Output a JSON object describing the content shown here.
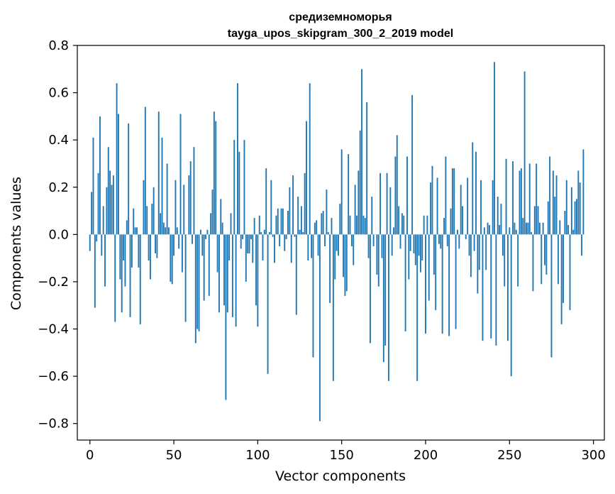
{
  "chart_data": {
    "type": "bar",
    "title_line1": "средиземноморья",
    "title_line2": "tayga_upos_skipgram_300_2_2019 model",
    "xlabel": "Vector components",
    "ylabel": "Components values",
    "xlim": [
      -7.5,
      306.5
    ],
    "ylim": [
      -0.87,
      0.8
    ],
    "xticks": [
      0,
      50,
      100,
      150,
      200,
      250,
      300
    ],
    "xtick_labels": [
      "0",
      "50",
      "100",
      "150",
      "200",
      "250",
      "300"
    ],
    "yticks": [
      -0.8,
      -0.6,
      -0.4,
      -0.2,
      0.0,
      0.2,
      0.4,
      0.6,
      0.8
    ],
    "ytick_labels": [
      "−0.8",
      "−0.6",
      "−0.4",
      "−0.2",
      "0.0",
      "0.2",
      "0.4",
      "0.6",
      "0.8"
    ],
    "bar_color": "#1f77b4",
    "values": [
      -0.07,
      0.18,
      0.41,
      -0.31,
      -0.03,
      0.26,
      0.5,
      -0.09,
      0.12,
      -0.22,
      0.2,
      0.37,
      0.27,
      0.21,
      0.25,
      -0.37,
      0.64,
      0.51,
      -0.19,
      -0.33,
      -0.11,
      -0.22,
      0.06,
      0.47,
      -0.35,
      -0.14,
      0.11,
      0.03,
      0.03,
      -0.14,
      -0.38,
      0.0,
      0.23,
      0.54,
      0.12,
      -0.11,
      -0.19,
      0.13,
      0.2,
      -0.08,
      -0.1,
      0.52,
      0.09,
      0.41,
      0.05,
      0.03,
      0.3,
      0.03,
      -0.2,
      -0.21,
      -0.09,
      0.23,
      0.03,
      -0.06,
      0.51,
      -0.16,
      0.21,
      -0.37,
      0.0,
      0.25,
      0.31,
      -0.04,
      0.37,
      -0.46,
      -0.4,
      -0.41,
      0.02,
      -0.09,
      -0.28,
      -0.02,
      0.02,
      -0.26,
      0.09,
      0.19,
      0.52,
      0.48,
      -0.16,
      -0.33,
      0.15,
      0.05,
      -0.3,
      -0.7,
      -0.33,
      -0.11,
      0.09,
      -0.35,
      0.4,
      -0.39,
      0.64,
      0.35,
      -0.06,
      -0.02,
      0.4,
      -0.2,
      -0.08,
      -0.08,
      -0.02,
      -0.12,
      0.07,
      -0.3,
      -0.39,
      0.08,
      0.01,
      -0.11,
      0.02,
      0.28,
      -0.59,
      0.01,
      0.23,
      -0.01,
      -0.12,
      0.08,
      0.11,
      -0.05,
      0.11,
      0.11,
      -0.07,
      -0.02,
      0.1,
      0.2,
      -0.12,
      0.25,
      -0.01,
      -0.34,
      0.16,
      0.02,
      0.12,
      0.01,
      0.26,
      0.48,
      -0.11,
      0.64,
      -0.1,
      -0.52,
      0.05,
      0.06,
      -0.09,
      -0.79,
      0.09,
      0.1,
      -0.05,
      0.19,
      0.01,
      -0.29,
      0.07,
      -0.62,
      -0.19,
      -0.07,
      -0.09,
      0.13,
      0.36,
      -0.18,
      -0.26,
      -0.24,
      0.34,
      0.08,
      -0.05,
      -0.13,
      0.21,
      0.08,
      0.27,
      0.44,
      0.7,
      0.08,
      0.07,
      0.56,
      -0.1,
      -0.46,
      0.16,
      -0.05,
      0.0,
      -0.17,
      -0.22,
      0.26,
      -0.1,
      -0.54,
      -0.47,
      0.26,
      -0.62,
      0.2,
      -0.09,
      0.03,
      0.33,
      0.42,
      0.12,
      -0.06,
      0.09,
      0.08,
      -0.41,
      0.33,
      -0.19,
      -0.07,
      0.59,
      -0.08,
      -0.13,
      -0.62,
      -0.09,
      -0.16,
      -0.11,
      0.08,
      -0.42,
      0.08,
      -0.28,
      0.22,
      0.29,
      -0.17,
      -0.32,
      0.24,
      -0.04,
      -0.06,
      -0.42,
      0.07,
      0.33,
      -0.05,
      -0.43,
      0.11,
      0.28,
      0.28,
      -0.4,
      0.02,
      -0.06,
      0.21,
      0.12,
      0.0,
      -0.02,
      0.24,
      -0.09,
      -0.18,
      0.39,
      -0.07,
      0.35,
      -0.25,
      -0.15,
      0.23,
      -0.45,
      0.03,
      -0.15,
      0.05,
      0.04,
      -0.44,
      0.23,
      0.73,
      -0.47,
      0.16,
      0.04,
      0.13,
      -0.09,
      -0.22,
      0.32,
      -0.45,
      0.03,
      -0.6,
      0.31,
      0.05,
      0.02,
      -0.22,
      0.27,
      0.28,
      0.07,
      0.69,
      0.05,
      0.05,
      0.3,
      0.01,
      -0.24,
      0.12,
      0.3,
      0.12,
      0.05,
      -0.21,
      0.05,
      -0.13,
      -0.17,
      0.14,
      0.33,
      -0.52,
      0.27,
      0.16,
      0.25,
      -0.21,
      0.06,
      -0.38,
      -0.29,
      0.1,
      0.23,
      0.04,
      -0.32,
      0.2,
      0.02,
      0.14,
      0.15,
      0.27,
      0.22,
      -0.09,
      0.36
    ]
  }
}
